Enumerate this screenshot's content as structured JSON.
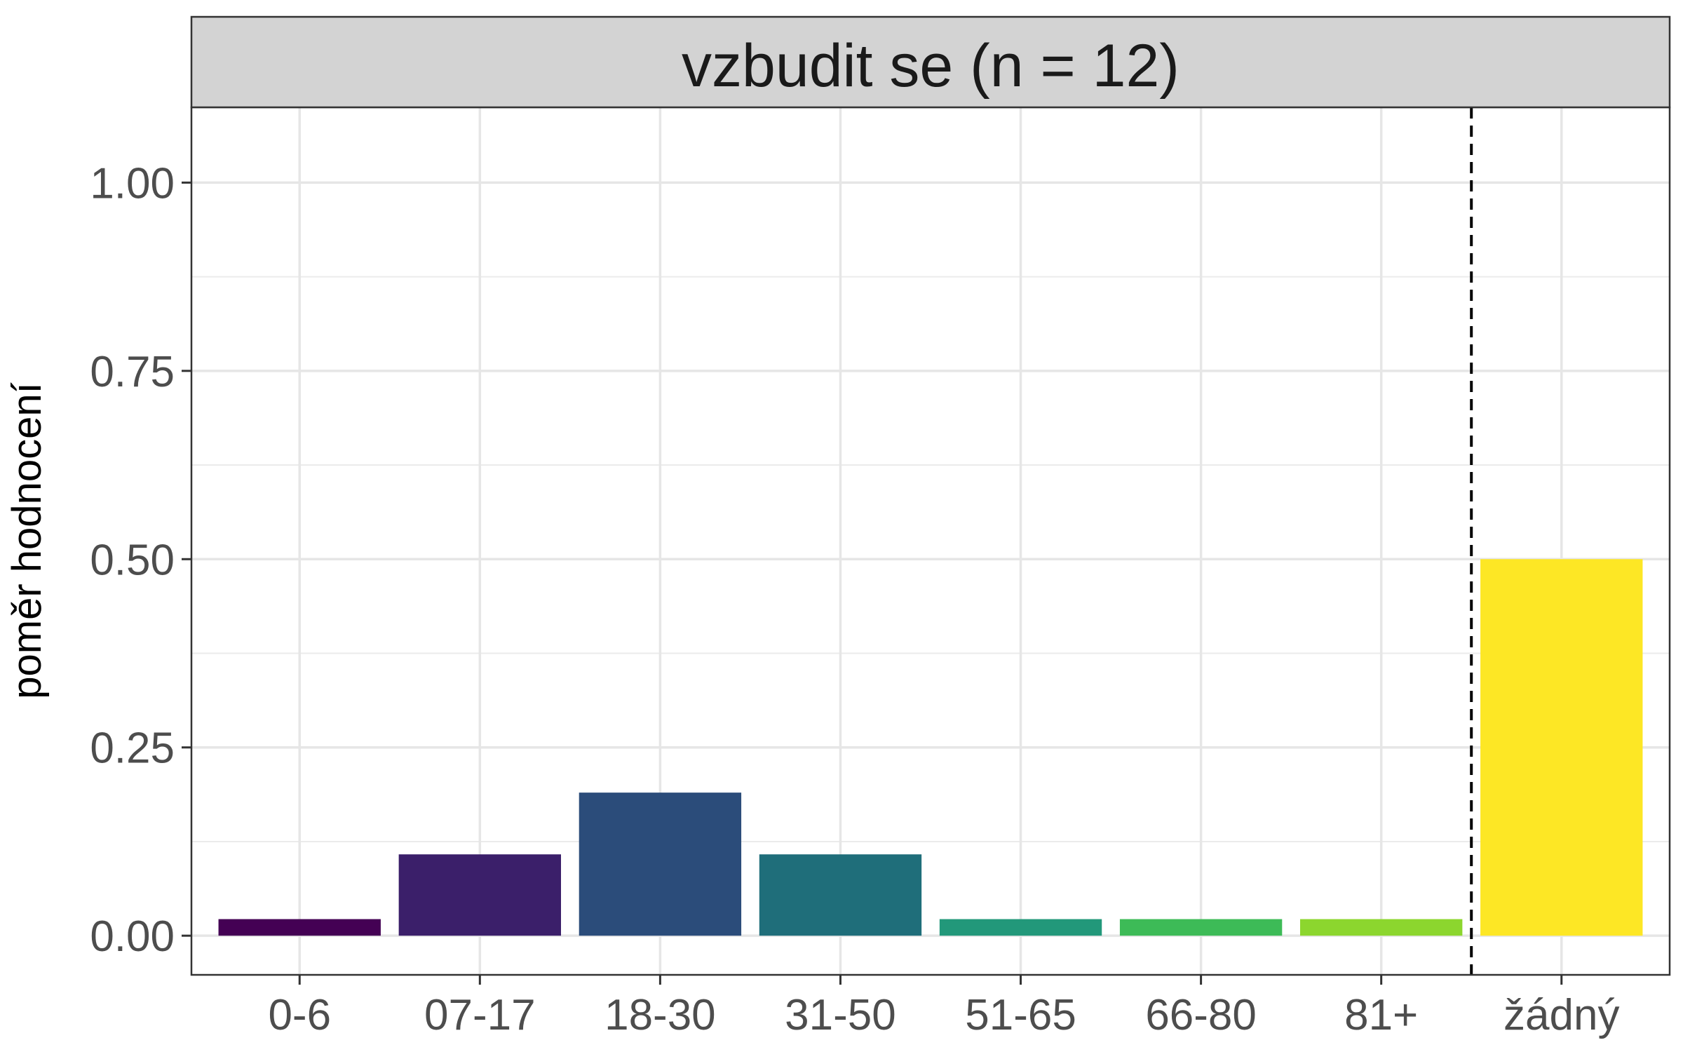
{
  "chart_data": {
    "type": "bar",
    "title": "vzbudit se (n = 12)",
    "xlabel": "",
    "ylabel": "poměr hodnocení",
    "categories": [
      "0-6",
      "07-17",
      "18-30",
      "31-50",
      "51-65",
      "66-80",
      "81+",
      "žádný"
    ],
    "values": [
      0.022,
      0.108,
      0.19,
      0.108,
      0.022,
      0.022,
      0.022,
      0.5
    ],
    "colors": [
      "#440154",
      "#3B1F6A",
      "#2B4C7A",
      "#1F6E7A",
      "#22987A",
      "#3DBB57",
      "#8CD62E",
      "#FDE725"
    ],
    "ylim": [
      -0.052,
      1.1
    ],
    "yticks": [
      0,
      0.25,
      0.5,
      0.75,
      1.0
    ],
    "ytick_labels": [
      "0.00",
      "0.25",
      "0.50",
      "0.75",
      "1.00"
    ],
    "separator_after_category": "81+",
    "grid": true,
    "legend": "none"
  }
}
